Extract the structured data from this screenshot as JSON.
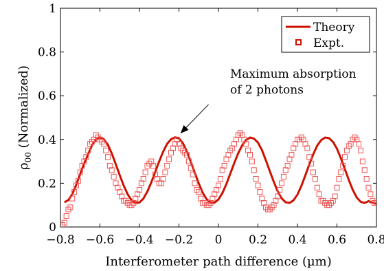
{
  "chart_data": {
    "type": "line",
    "xlabel": "Interferometer path difference (µm)",
    "ylabel_symbol": "ρ",
    "ylabel_subscript": "00",
    "ylabel_rest": " (Normalized)",
    "xlim": [
      -0.8,
      0.8
    ],
    "ylim": [
      0,
      1
    ],
    "x_ticks": [
      -0.8,
      -0.6,
      -0.4,
      -0.2,
      0,
      0.2,
      0.4,
      0.6,
      0.8
    ],
    "x_tick_labels": [
      "−0.8",
      "−0.6",
      "−0.4",
      "−0.2",
      "0",
      "0.2",
      "0.4",
      "0.6",
      "0.8"
    ],
    "y_ticks": [
      0,
      0.2,
      0.4,
      0.6,
      0.8,
      1
    ],
    "y_tick_labels": [
      "0",
      "0.2",
      "0.4",
      "0.6",
      "0.8",
      "1"
    ],
    "grid": false,
    "legend_position": "top-right",
    "colors": {
      "theory": "#cc1100",
      "expt": "#ee5555"
    },
    "series": [
      {
        "name": "Theory",
        "style": "line",
        "x": [
          -0.78,
          -0.76,
          -0.74,
          -0.72,
          -0.7,
          -0.68,
          -0.66,
          -0.64,
          -0.62,
          -0.6,
          -0.58,
          -0.56,
          -0.54,
          -0.52,
          -0.5,
          -0.48,
          -0.46,
          -0.44,
          -0.42,
          -0.4,
          -0.38,
          -0.36,
          -0.34,
          -0.32,
          -0.3,
          -0.28,
          -0.26,
          -0.24,
          -0.22,
          -0.2,
          -0.18,
          -0.16,
          -0.14,
          -0.12,
          -0.1,
          -0.08,
          -0.06,
          -0.04,
          -0.02,
          0.0,
          0.02,
          0.04,
          0.06,
          0.08,
          0.1,
          0.12,
          0.14,
          0.16,
          0.18,
          0.2,
          0.22,
          0.24,
          0.26,
          0.28,
          0.3,
          0.32,
          0.34,
          0.36,
          0.38,
          0.4,
          0.42,
          0.44,
          0.46,
          0.48,
          0.5,
          0.52,
          0.54,
          0.56,
          0.58,
          0.6,
          0.62,
          0.64,
          0.66,
          0.68,
          0.7,
          0.72,
          0.74,
          0.76,
          0.78,
          0.8
        ],
        "y": [
          0.113,
          0.123,
          0.151,
          0.193,
          0.242,
          0.29,
          0.332,
          0.373,
          0.401,
          0.41,
          0.401,
          0.376,
          0.336,
          0.287,
          0.237,
          0.19,
          0.15,
          0.122,
          0.11,
          0.112,
          0.13,
          0.162,
          0.204,
          0.252,
          0.3,
          0.344,
          0.38,
          0.401,
          0.41,
          0.405,
          0.383,
          0.346,
          0.298,
          0.248,
          0.2,
          0.157,
          0.127,
          0.111,
          0.111,
          0.126,
          0.155,
          0.196,
          0.244,
          0.292,
          0.337,
          0.373,
          0.398,
          0.409,
          0.404,
          0.386,
          0.352,
          0.305,
          0.255,
          0.207,
          0.163,
          0.131,
          0.113,
          0.11,
          0.122,
          0.148,
          0.188,
          0.236,
          0.286,
          0.332,
          0.372,
          0.397,
          0.409,
          0.406,
          0.389,
          0.358,
          0.314,
          0.265,
          0.215,
          0.17,
          0.135,
          0.115,
          0.11,
          0.118,
          0.111,
          0.106
        ]
      },
      {
        "name": "Expt.",
        "style": "markers",
        "x": [
          -0.79,
          -0.78,
          -0.77,
          -0.76,
          -0.75,
          -0.74,
          -0.73,
          -0.72,
          -0.71,
          -0.7,
          -0.69,
          -0.68,
          -0.67,
          -0.66,
          -0.65,
          -0.64,
          -0.63,
          -0.62,
          -0.61,
          -0.6,
          -0.59,
          -0.58,
          -0.57,
          -0.56,
          -0.55,
          -0.54,
          -0.53,
          -0.52,
          -0.51,
          -0.5,
          -0.49,
          -0.48,
          -0.47,
          -0.46,
          -0.45,
          -0.44,
          -0.43,
          -0.42,
          -0.41,
          -0.4,
          -0.39,
          -0.38,
          -0.37,
          -0.36,
          -0.35,
          -0.34,
          -0.33,
          -0.32,
          -0.31,
          -0.3,
          -0.29,
          -0.28,
          -0.27,
          -0.26,
          -0.25,
          -0.24,
          -0.23,
          -0.22,
          -0.21,
          -0.2,
          -0.19,
          -0.18,
          -0.17,
          -0.16,
          -0.15,
          -0.14,
          -0.13,
          -0.12,
          -0.11,
          -0.1,
          -0.09,
          -0.08,
          -0.07,
          -0.06,
          -0.05,
          -0.04,
          -0.03,
          -0.02,
          -0.01,
          0.0,
          0.01,
          0.02,
          0.03,
          0.04,
          0.05,
          0.06,
          0.07,
          0.08,
          0.09,
          0.1,
          0.11,
          0.12,
          0.13,
          0.14,
          0.15,
          0.16,
          0.17,
          0.18,
          0.19,
          0.2,
          0.21,
          0.22,
          0.23,
          0.24,
          0.25,
          0.26,
          0.27,
          0.28,
          0.29,
          0.3,
          0.31,
          0.32,
          0.33,
          0.34,
          0.35,
          0.36,
          0.37,
          0.38,
          0.39,
          0.4,
          0.41,
          0.42,
          0.43,
          0.44,
          0.45,
          0.46,
          0.47,
          0.48,
          0.49,
          0.5,
          0.51,
          0.52,
          0.53,
          0.54,
          0.55,
          0.56,
          0.57,
          0.58,
          0.59,
          0.6,
          0.61,
          0.62,
          0.63,
          0.64,
          0.65,
          0.66,
          0.67,
          0.68,
          0.69,
          0.7,
          0.71,
          0.72,
          0.73,
          0.74,
          0.75,
          0.76,
          0.77,
          0.78,
          0.79,
          0.8
        ],
        "y": [
          0.01,
          0.02,
          0.05,
          0.08,
          0.09,
          0.13,
          0.16,
          0.19,
          0.21,
          0.25,
          0.28,
          0.3,
          0.32,
          0.35,
          0.38,
          0.39,
          0.4,
          0.42,
          0.41,
          0.4,
          0.39,
          0.38,
          0.35,
          0.32,
          0.28,
          0.26,
          0.23,
          0.2,
          0.18,
          0.16,
          0.14,
          0.12,
          0.12,
          0.11,
          0.1,
          0.1,
          0.11,
          0.13,
          0.15,
          0.17,
          0.2,
          0.22,
          0.25,
          0.28,
          0.29,
          0.3,
          0.28,
          0.24,
          0.22,
          0.2,
          0.2,
          0.22,
          0.25,
          0.28,
          0.31,
          0.34,
          0.36,
          0.38,
          0.4,
          0.38,
          0.36,
          0.35,
          0.34,
          0.33,
          0.3,
          0.27,
          0.24,
          0.2,
          0.17,
          0.16,
          0.13,
          0.11,
          0.11,
          0.1,
          0.1,
          0.11,
          0.13,
          0.15,
          0.17,
          0.19,
          0.22,
          0.26,
          0.28,
          0.31,
          0.33,
          0.35,
          0.36,
          0.38,
          0.4,
          0.42,
          0.43,
          0.42,
          0.4,
          0.38,
          0.35,
          0.33,
          0.3,
          0.26,
          0.22,
          0.19,
          0.16,
          0.13,
          0.11,
          0.09,
          0.08,
          0.08,
          0.09,
          0.1,
          0.12,
          0.14,
          0.17,
          0.2,
          0.23,
          0.26,
          0.28,
          0.31,
          0.33,
          0.36,
          0.38,
          0.4,
          0.4,
          0.41,
          0.4,
          0.38,
          0.36,
          0.32,
          0.29,
          0.25,
          0.22,
          0.18,
          0.15,
          0.12,
          0.12,
          0.11,
          0.1,
          0.1,
          0.11,
          0.12,
          0.14,
          0.18,
          0.22,
          0.25,
          0.28,
          0.32,
          0.35,
          0.37,
          0.38,
          0.4,
          0.41,
          0.4,
          0.38,
          0.35,
          0.3,
          0.26,
          0.22,
          0.18,
          0.15,
          0.12,
          0.11,
          0.11
        ]
      }
    ],
    "legend": [
      "Theory",
      "Expt."
    ],
    "annotation": {
      "lines": [
        "Maximum absorption",
        "of 2 photons"
      ],
      "arrow_from": [
        -0.05,
        0.56
      ],
      "arrow_to": [
        -0.19,
        0.43
      ]
    }
  }
}
